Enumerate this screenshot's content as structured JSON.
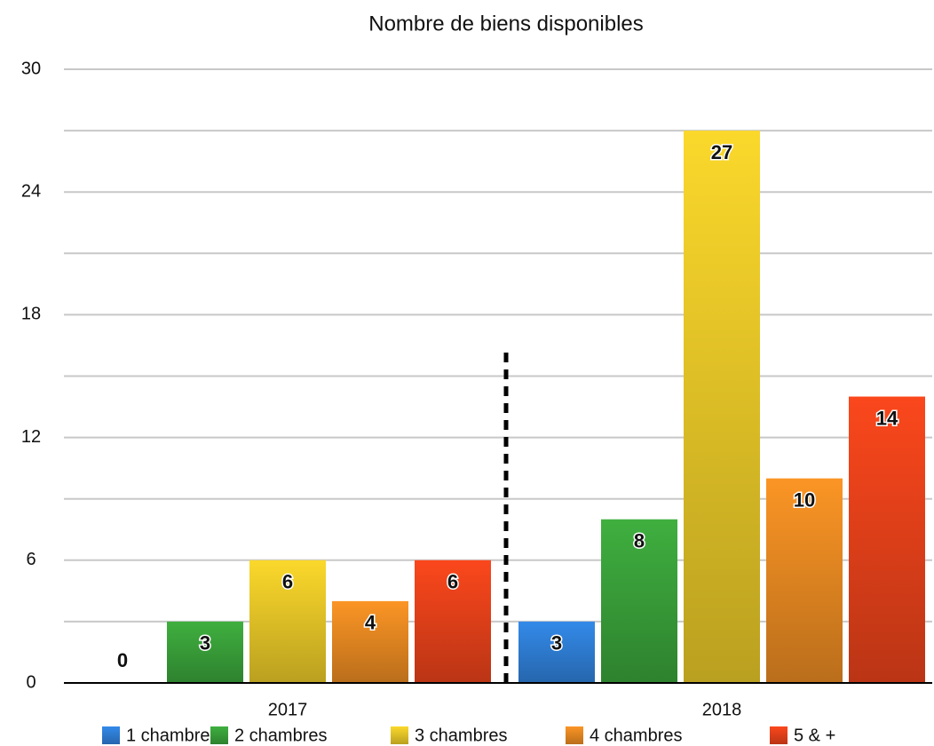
{
  "chart_data": {
    "type": "bar",
    "title": "Nombre de biens disponibles",
    "categories": [
      "2017",
      "2018"
    ],
    "series": [
      {
        "name": "1 chambre",
        "color": "#2f80d8",
        "values": [
          0,
          3
        ]
      },
      {
        "name": "2 chambres",
        "color": "#3aa23a",
        "values": [
          3,
          8
        ]
      },
      {
        "name": "3 chambres",
        "color": "#e8c828",
        "values": [
          6,
          27
        ]
      },
      {
        "name": "4 chambres",
        "color": "#e88a22",
        "values": [
          4,
          10
        ]
      },
      {
        "name": "5 & +",
        "color": "#e8421a",
        "values": [
          6,
          14
        ]
      }
    ],
    "ylim": [
      0,
      30
    ],
    "yticks": [
      0,
      6,
      12,
      18,
      24,
      30
    ],
    "y_minor_ticks": [
      3,
      9,
      15,
      21,
      27
    ],
    "grid": true,
    "legend": "bottom"
  }
}
